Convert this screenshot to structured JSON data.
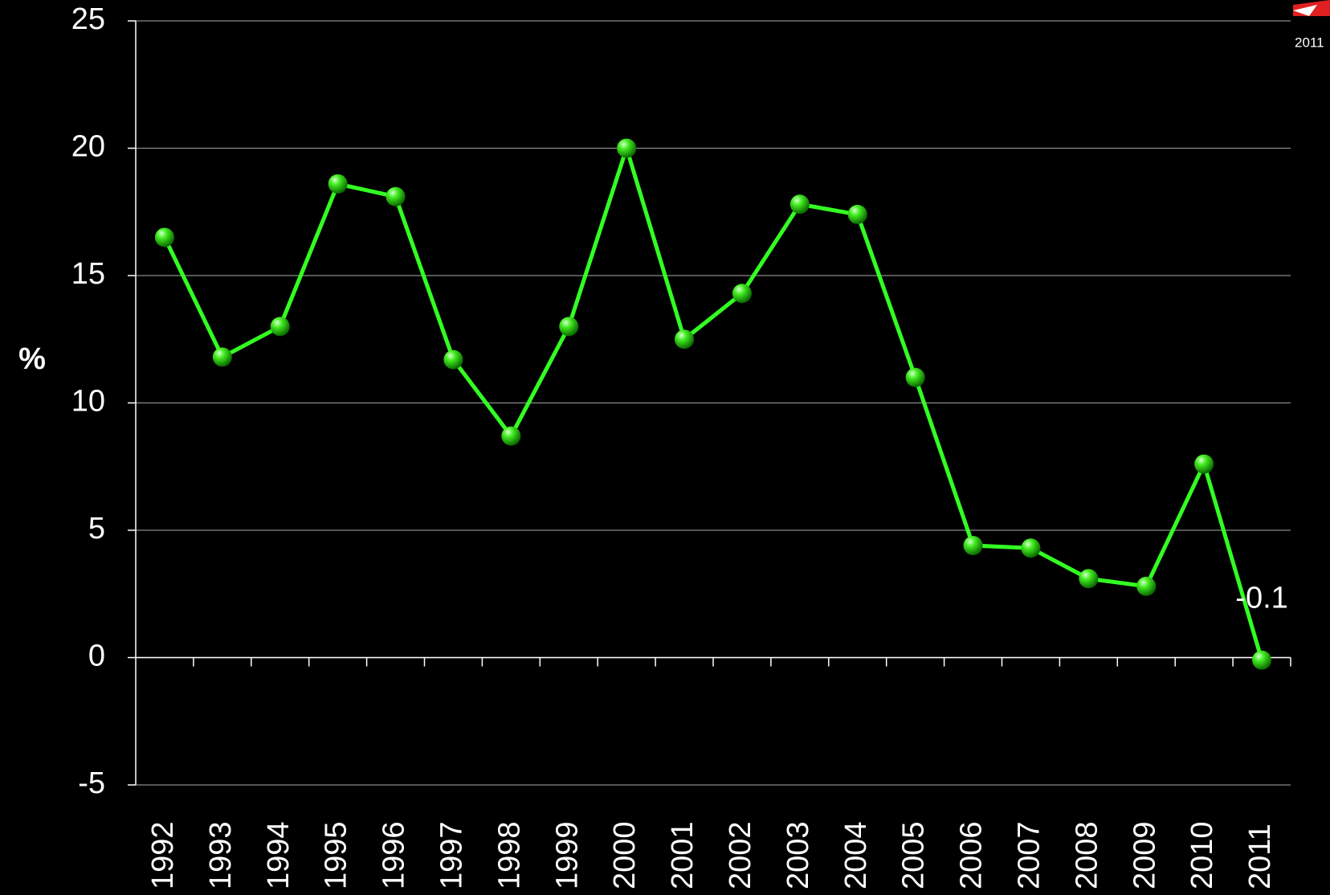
{
  "chart_data": {
    "type": "line",
    "y_label": "%",
    "categories": [
      "1992",
      "1993",
      "1994",
      "1995",
      "1996",
      "1997",
      "1998",
      "1999",
      "2000",
      "2001",
      "2002",
      "2003",
      "2004",
      "2005",
      "2006",
      "2007",
      "2008",
      "2009",
      "2010",
      "2011"
    ],
    "series": [
      {
        "name": "%",
        "color": "#33ff22",
        "values": [
          16.5,
          11.8,
          13.0,
          18.6,
          18.1,
          11.7,
          8.7,
          13.0,
          20.0,
          12.5,
          14.3,
          17.8,
          17.4,
          11.0,
          4.4,
          4.3,
          3.1,
          2.8,
          7.6,
          -0.1
        ]
      }
    ],
    "labeled_point": 19,
    "ylim": [
      -5,
      25
    ],
    "yticks": [
      -5,
      0,
      5,
      10,
      15,
      20,
      25
    ],
    "grid": true,
    "logo_text": "2011"
  }
}
